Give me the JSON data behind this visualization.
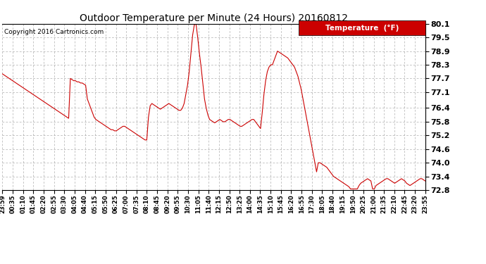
{
  "title": "Outdoor Temperature per Minute (24 Hours) 20160812",
  "copyright": "Copyright 2016 Cartronics.com",
  "legend_label": "Temperature  (°F)",
  "line_color": "#cc0000",
  "background_color": "#ffffff",
  "grid_color": "#999999",
  "ylim": [
    72.8,
    80.1
  ],
  "yticks": [
    72.8,
    73.4,
    74.0,
    74.6,
    75.2,
    75.8,
    76.4,
    77.1,
    77.7,
    78.3,
    78.9,
    79.5,
    80.1
  ],
  "xtick_labels": [
    "23:59",
    "00:35",
    "01:10",
    "01:45",
    "02:20",
    "02:55",
    "03:30",
    "04:05",
    "04:40",
    "05:15",
    "05:50",
    "06:25",
    "07:00",
    "07:35",
    "08:10",
    "08:45",
    "09:20",
    "09:55",
    "10:30",
    "11:05",
    "11:40",
    "12:15",
    "12:50",
    "13:25",
    "14:00",
    "14:35",
    "15:10",
    "15:45",
    "16:20",
    "16:55",
    "17:30",
    "18:05",
    "18:40",
    "19:15",
    "19:50",
    "20:25",
    "21:00",
    "21:35",
    "22:10",
    "22:45",
    "23:20",
    "23:55"
  ],
  "temperature_data": [
    77.9,
    77.85,
    77.8,
    77.75,
    77.7,
    77.65,
    77.6,
    77.55,
    77.5,
    77.45,
    77.4,
    77.35,
    77.3,
    77.25,
    77.2,
    77.15,
    77.1,
    77.05,
    77.0,
    76.95,
    76.9,
    76.85,
    76.8,
    76.75,
    76.7,
    76.65,
    76.6,
    76.55,
    76.5,
    76.45,
    76.4,
    76.35,
    76.3,
    76.25,
    76.2,
    76.15,
    76.1,
    76.05,
    76.0,
    75.95,
    77.7,
    77.65,
    77.6,
    77.6,
    77.55,
    77.55,
    77.5,
    77.5,
    77.45,
    77.4,
    76.8,
    76.6,
    76.4,
    76.2,
    76.0,
    75.9,
    75.85,
    75.8,
    75.75,
    75.7,
    75.65,
    75.6,
    75.55,
    75.5,
    75.45,
    75.45,
    75.4,
    75.4,
    75.45,
    75.5,
    75.55,
    75.6,
    75.6,
    75.55,
    75.5,
    75.45,
    75.4,
    75.35,
    75.3,
    75.25,
    75.2,
    75.15,
    75.1,
    75.05,
    75.0,
    75.0,
    76.0,
    76.5,
    76.6,
    76.55,
    76.5,
    76.45,
    76.4,
    76.35,
    76.4,
    76.45,
    76.5,
    76.55,
    76.6,
    76.55,
    76.5,
    76.45,
    76.4,
    76.35,
    76.3,
    76.3,
    76.4,
    76.6,
    77.0,
    77.4,
    78.0,
    78.8,
    79.6,
    80.05,
    80.1,
    79.5,
    78.8,
    78.2,
    77.5,
    76.8,
    76.4,
    76.1,
    75.9,
    75.85,
    75.8,
    75.75,
    75.8,
    75.85,
    75.9,
    75.85,
    75.8,
    75.8,
    75.85,
    75.9,
    75.9,
    75.85,
    75.8,
    75.75,
    75.7,
    75.65,
    75.6,
    75.6,
    75.65,
    75.7,
    75.75,
    75.8,
    75.85,
    75.9,
    75.9,
    75.8,
    75.7,
    75.6,
    75.5,
    76.2,
    77.0,
    77.6,
    78.0,
    78.2,
    78.3,
    78.3,
    78.5,
    78.7,
    78.9,
    78.85,
    78.8,
    78.75,
    78.7,
    78.65,
    78.6,
    78.5,
    78.4,
    78.3,
    78.2,
    78.0,
    77.8,
    77.5,
    77.2,
    76.8,
    76.4,
    76.0,
    75.6,
    75.2,
    74.8,
    74.4,
    74.0,
    73.6,
    74.0,
    74.0,
    73.95,
    73.9,
    73.85,
    73.8,
    73.7,
    73.6,
    73.5,
    73.4,
    73.35,
    73.3,
    73.25,
    73.2,
    73.15,
    73.1,
    73.05,
    73.0,
    72.95,
    72.85,
    72.85,
    72.85,
    72.85,
    72.85,
    73.0,
    73.1,
    73.15,
    73.2,
    73.25,
    73.3,
    73.25,
    73.2,
    72.85,
    72.85,
    73.0,
    73.05,
    73.1,
    73.15,
    73.2,
    73.25,
    73.3,
    73.3,
    73.25,
    73.2,
    73.15,
    73.1,
    73.15,
    73.2,
    73.25,
    73.3,
    73.25,
    73.2,
    73.1,
    73.05,
    73.0,
    73.05,
    73.1,
    73.15,
    73.2,
    73.25,
    73.3,
    73.3,
    73.25,
    73.2
  ]
}
